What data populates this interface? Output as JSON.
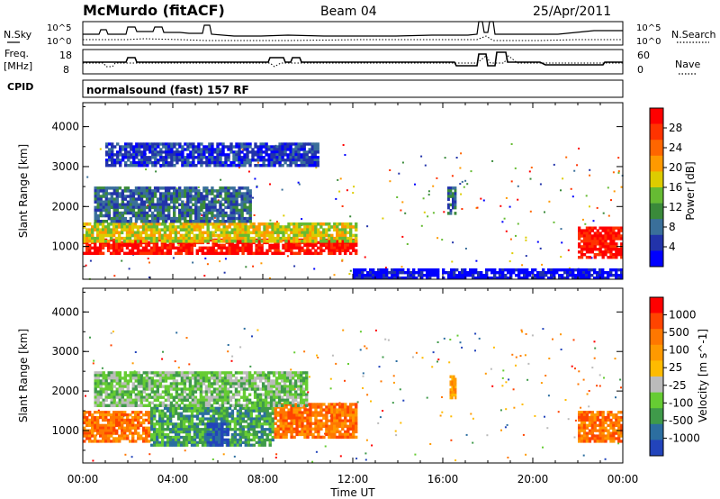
{
  "header": {
    "station": "McMurdo (fitACF)",
    "beam": "Beam 04",
    "date": "25/Apr/2011"
  },
  "left_labels": {
    "nsky": "N.Sky",
    "freq": "Freq.",
    "freq_unit": "[MHz]",
    "cpid": "CPID"
  },
  "right_labels": {
    "nsearch": "N.Search",
    "nave": "Nave"
  },
  "sky_axis": {
    "top": "10^5",
    "bottom": "10^0"
  },
  "freq_axis": {
    "top": "18",
    "bottom": "8"
  },
  "nave_axis": {
    "top": "60",
    "bottom": "0"
  },
  "cpid_text": "normalsound (fast) 157 RF",
  "colors": {
    "power": [
      "#0000ff",
      "#2233aa",
      "#3a6f9a",
      "#3a8a3a",
      "#66bb33",
      "#ddcc00",
      "#ff9900",
      "#ff6600",
      "#ff3300",
      "#ff0000"
    ],
    "velocity": [
      "#ff0000",
      "#ff4400",
      "#ff7700",
      "#ff9900",
      "#ffbb00",
      "#bbbbbb",
      "#66cc33",
      "#3f9a4a",
      "#2c6ea0",
      "#2244bb"
    ],
    "ground": "#aaaaaa"
  },
  "chart_data": [
    {
      "type": "heatmap",
      "name": "power",
      "ylabel": "Slant Range [km]",
      "colorbar_label": "Power [dB]",
      "colorbar_ticks": [
        "4",
        "8",
        "12",
        "16",
        "20",
        "24",
        "28"
      ],
      "x_ticks": [
        "00:00",
        "04:00",
        "08:00",
        "12:00",
        "16:00",
        "20:00",
        "00:00"
      ],
      "y_ticks": [
        "1000",
        "2000",
        "3000",
        "4000"
      ],
      "xlim_hours": [
        0,
        24
      ],
      "ylim_km": [
        180,
        4600
      ],
      "regions": [
        {
          "t0": 0.0,
          "t1": 12.2,
          "r0": 800,
          "r1": 1200,
          "level": 9
        },
        {
          "t0": 0.0,
          "t1": 12.2,
          "r0": 1100,
          "r1": 1600,
          "level": 5
        },
        {
          "t0": 0.5,
          "t1": 7.5,
          "r0": 1600,
          "r1": 2500,
          "level": 2
        },
        {
          "t0": 1.0,
          "t1": 10.5,
          "r0": 3000,
          "r1": 3600,
          "level": 1
        },
        {
          "t0": 16.2,
          "t1": 16.6,
          "r0": 1800,
          "r1": 2500,
          "level": 2
        },
        {
          "t0": 22.0,
          "t1": 24.0,
          "r0": 700,
          "r1": 1500,
          "level": 9
        },
        {
          "t0": 12.0,
          "t1": 24.0,
          "r0": 180,
          "r1": 450,
          "level": 0
        }
      ]
    },
    {
      "type": "heatmap",
      "name": "velocity",
      "ylabel": "Slant Range [km]",
      "xlabel": "Time UT",
      "colorbar_label": "Velocity [m s^-1]",
      "colorbar_ticks": [
        "1000",
        "500",
        "100",
        "25",
        "-25",
        "-100",
        "-500",
        "-1000"
      ],
      "x_ticks": [
        "00:00",
        "04:00",
        "08:00",
        "12:00",
        "16:00",
        "20:00",
        "00:00"
      ],
      "y_ticks": [
        "1000",
        "2000",
        "3000",
        "4000"
      ],
      "xlim_hours": [
        0,
        24
      ],
      "ylim_km": [
        180,
        4600
      ],
      "regions": [
        {
          "t0": 0.0,
          "t1": 3.0,
          "r0": 700,
          "r1": 1500,
          "level": 2
        },
        {
          "t0": 3.0,
          "t1": 8.5,
          "r0": 600,
          "r1": 1600,
          "level": 7
        },
        {
          "t0": 5.5,
          "t1": 6.5,
          "r0": 600,
          "r1": 1200,
          "level": 9
        },
        {
          "t0": 8.5,
          "t1": 12.2,
          "r0": 800,
          "r1": 1700,
          "level": 2
        },
        {
          "t0": 22.0,
          "t1": 24.0,
          "r0": 700,
          "r1": 1500,
          "level": 2
        },
        {
          "t0": 0.5,
          "t1": 10.0,
          "r0": 1600,
          "r1": 2500,
          "level": 6
        },
        {
          "t0": 16.3,
          "t1": 16.6,
          "r0": 1800,
          "r1": 2400,
          "level": 3
        }
      ]
    }
  ]
}
